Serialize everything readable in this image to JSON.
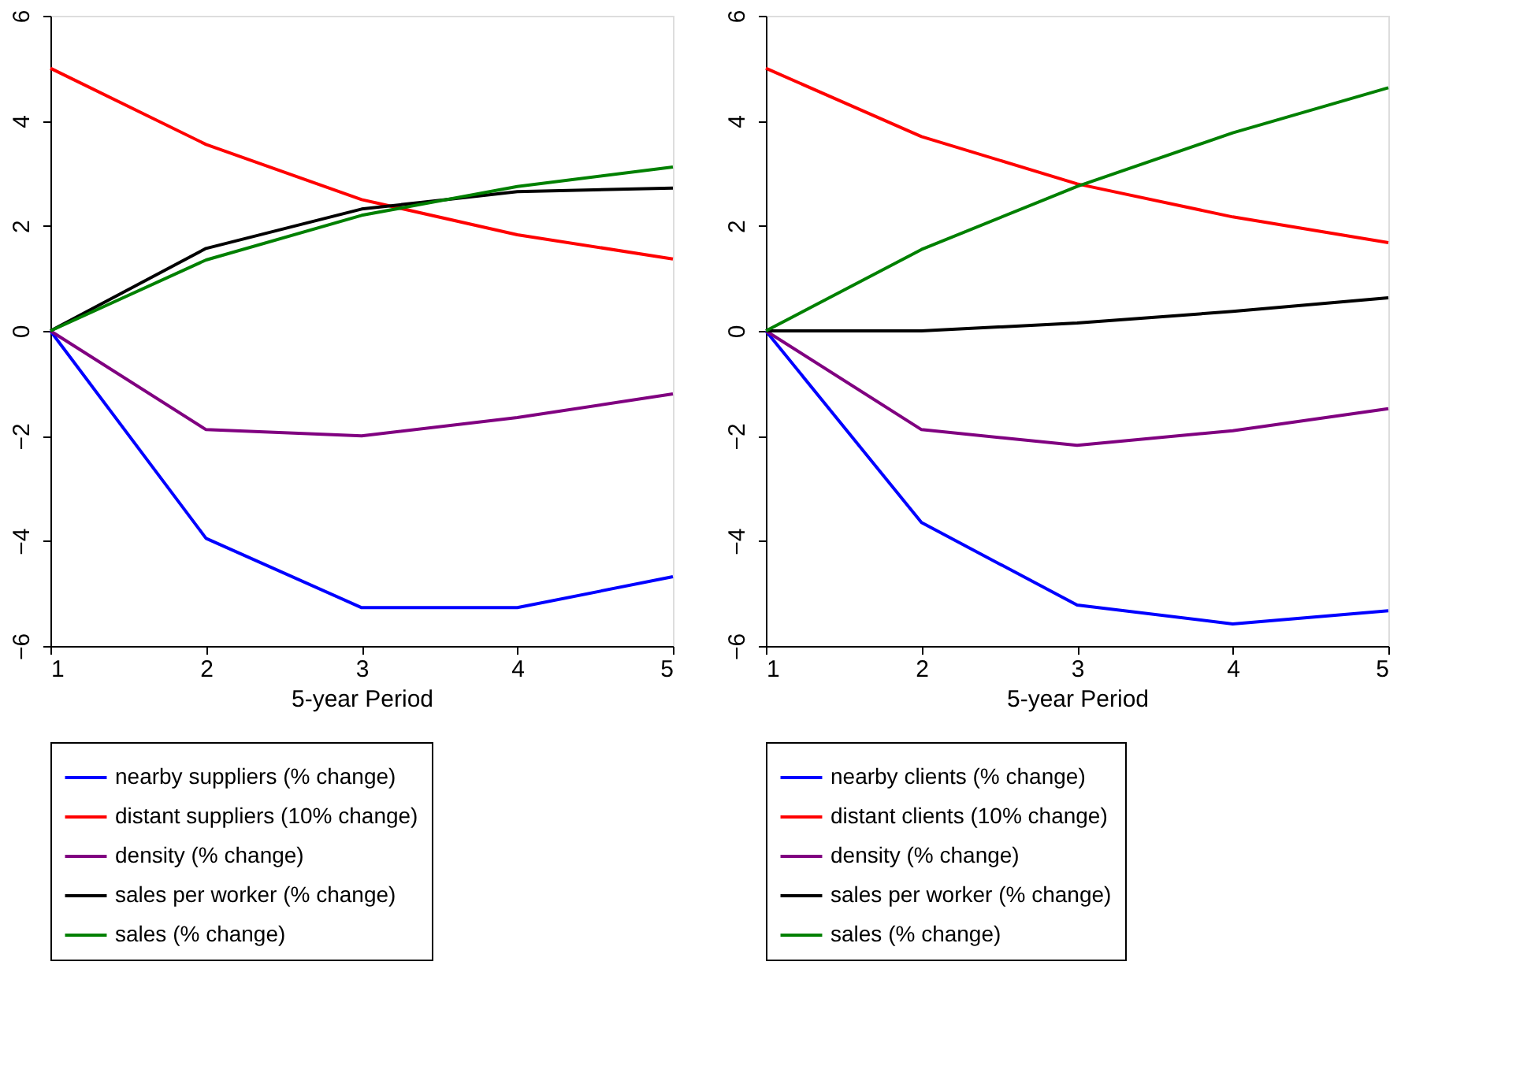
{
  "chart_data": [
    {
      "type": "line",
      "xlabel": "5-year Period",
      "x": [
        1,
        2,
        3,
        4,
        5
      ],
      "xlim": [
        1,
        5
      ],
      "xticks": [
        1,
        2,
        3,
        4,
        5
      ],
      "ylim": [
        -6,
        6
      ],
      "yticks": [
        -6,
        -4,
        -2,
        0,
        2,
        4,
        6
      ],
      "grid": false,
      "legend": "bottom",
      "marker": "none",
      "line_style": "solid",
      "series": [
        {
          "name": "nearby suppliers (% change)",
          "color": "#0000ff",
          "values": [
            0,
            -3.95,
            -5.27,
            -5.27,
            -4.68
          ]
        },
        {
          "name": "distant suppliers (10% change)",
          "color": "#ff0000",
          "values": [
            5,
            3.55,
            2.5,
            1.83,
            1.37
          ]
        },
        {
          "name": "density (% change)",
          "color": "#800080",
          "values": [
            0,
            -1.88,
            -2.0,
            -1.65,
            -1.2
          ]
        },
        {
          "name": "sales per worker (% change)",
          "color": "#000000",
          "values": [
            0,
            1.57,
            2.32,
            2.65,
            2.72
          ]
        },
        {
          "name": "sales (% change)",
          "color": "#008000",
          "values": [
            0,
            1.35,
            2.2,
            2.75,
            3.12
          ]
        }
      ]
    },
    {
      "type": "line",
      "xlabel": "5-year Period",
      "x": [
        1,
        2,
        3,
        4,
        5
      ],
      "xlim": [
        1,
        5
      ],
      "xticks": [
        1,
        2,
        3,
        4,
        5
      ],
      "ylim": [
        -6,
        6
      ],
      "yticks": [
        -6,
        -4,
        -2,
        0,
        2,
        4,
        6
      ],
      "grid": false,
      "legend": "bottom",
      "marker": "none",
      "line_style": "solid",
      "series": [
        {
          "name": "nearby clients (% change)",
          "color": "#0000ff",
          "values": [
            0,
            -3.65,
            -5.22,
            -5.58,
            -5.33
          ]
        },
        {
          "name": "distant clients (10% change)",
          "color": "#ff0000",
          "values": [
            5,
            3.7,
            2.8,
            2.17,
            1.68
          ]
        },
        {
          "name": "density (% change)",
          "color": "#800080",
          "values": [
            0,
            -1.88,
            -2.18,
            -1.9,
            -1.48
          ]
        },
        {
          "name": "sales per worker (% change)",
          "color": "#000000",
          "values": [
            0,
            0.0,
            0.15,
            0.37,
            0.63
          ]
        },
        {
          "name": "sales (% change)",
          "color": "#008000",
          "values": [
            0,
            1.55,
            2.75,
            3.77,
            4.63
          ]
        }
      ]
    }
  ]
}
